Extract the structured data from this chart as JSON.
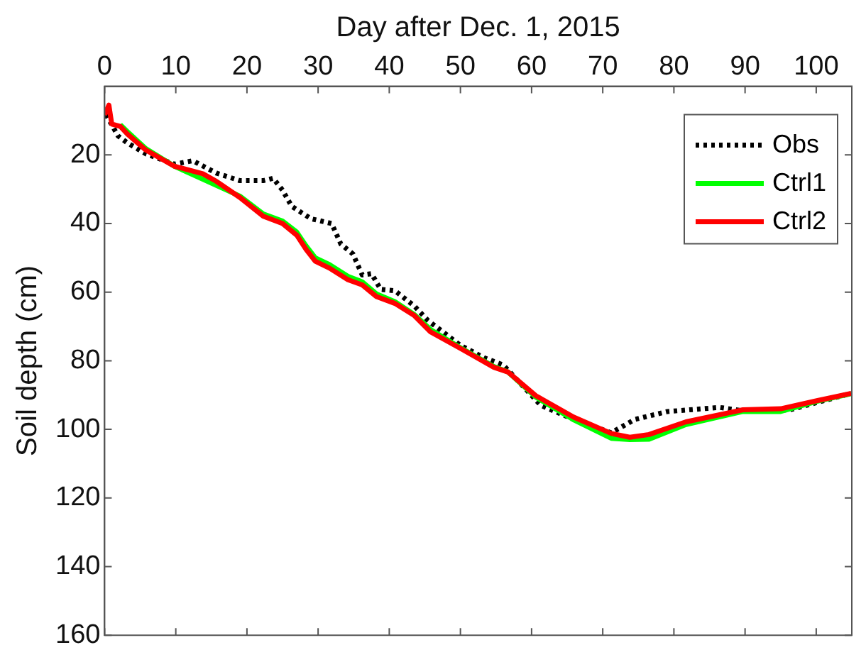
{
  "chart_data": {
    "type": "line",
    "xlabel": "Day after Dec. 1, 2015",
    "ylabel": "Soil depth (cm)",
    "xlim": [
      0,
      105
    ],
    "xticks": [
      0,
      10,
      20,
      30,
      40,
      50,
      60,
      70,
      80,
      90,
      100
    ],
    "ylim": [
      160,
      0
    ],
    "yticks": [
      20,
      40,
      60,
      80,
      100,
      120,
      140,
      160
    ],
    "grid": false,
    "legend": "top right",
    "marker": "none",
    "series": [
      {
        "name": "Obs",
        "color": "#000000",
        "line_style": "dotted",
        "x": [
          0.2,
          1.9,
          3.2,
          5.8,
          9.8,
          12.4,
          15.7,
          19,
          22.3,
          23.7,
          25,
          26.3,
          29,
          31.9,
          33.2,
          34.9,
          36.2,
          37.5,
          38.8,
          40.8,
          43.5,
          45.4,
          50,
          53.4,
          56,
          61.3,
          65.9,
          71.2,
          74.5,
          79.1,
          86.4,
          89.7,
          96.3,
          104.9
        ],
        "values": [
          8.3,
          14.5,
          16.5,
          19.7,
          22.7,
          21.7,
          25.3,
          27.5,
          27.5,
          26.8,
          30.3,
          35,
          38.6,
          40,
          46,
          48.9,
          55,
          54.6,
          59.2,
          59.6,
          64,
          68.2,
          75.5,
          79.2,
          81.2,
          93,
          97.1,
          101,
          97.1,
          94.8,
          93.6,
          94.6,
          94.3,
          89.5
        ]
      },
      {
        "name": "Ctrl1",
        "color": "#00ff00",
        "line_style": "solid",
        "x": [
          2.2,
          3.2,
          5.8,
          9.8,
          19,
          22.3,
          25,
          27,
          28.3,
          29.6,
          31.6,
          34.2,
          36.2,
          38.2,
          40.8,
          43.5,
          45.8,
          50,
          54.7,
          56.7,
          60.6,
          65.9,
          71.2,
          73.8,
          76.5,
          81.7,
          89.7,
          95,
          100.2,
          104.9
        ],
        "values": [
          11.2,
          13.2,
          18.2,
          23.3,
          32,
          37.2,
          39.3,
          42.5,
          46.5,
          50,
          52,
          55.4,
          57,
          60.5,
          62.8,
          66.5,
          70.9,
          76.2,
          81.7,
          83.3,
          90.6,
          97.2,
          102.6,
          103,
          102.9,
          98.6,
          94.8,
          94.8,
          91.8,
          89.6
        ]
      },
      {
        "name": "Ctrl2",
        "color": "#ff0000",
        "line_style": "solid",
        "x": [
          0,
          0.6,
          1,
          2.2,
          3.2,
          5.8,
          9.8,
          13.8,
          15.7,
          19,
          22.3,
          25,
          27,
          28.3,
          29.6,
          31.6,
          34.2,
          36.2,
          38.2,
          40.8,
          43.5,
          45.8,
          50,
          54.7,
          56.7,
          60.6,
          65.9,
          71.2,
          73.8,
          76.5,
          81.7,
          89.7,
          95,
          100.2,
          104.9
        ],
        "values": [
          8.3,
          5.5,
          11,
          11.7,
          13.9,
          18.6,
          23.3,
          25.5,
          27.7,
          32.4,
          37.9,
          40,
          43.4,
          47.5,
          51,
          53,
          56.4,
          57.9,
          61.3,
          63.3,
          66.8,
          71.6,
          76.4,
          81.9,
          83.3,
          90.2,
          96.4,
          101.2,
          102.3,
          101.5,
          97.8,
          94.3,
          94,
          91.6,
          89.5
        ]
      }
    ]
  }
}
